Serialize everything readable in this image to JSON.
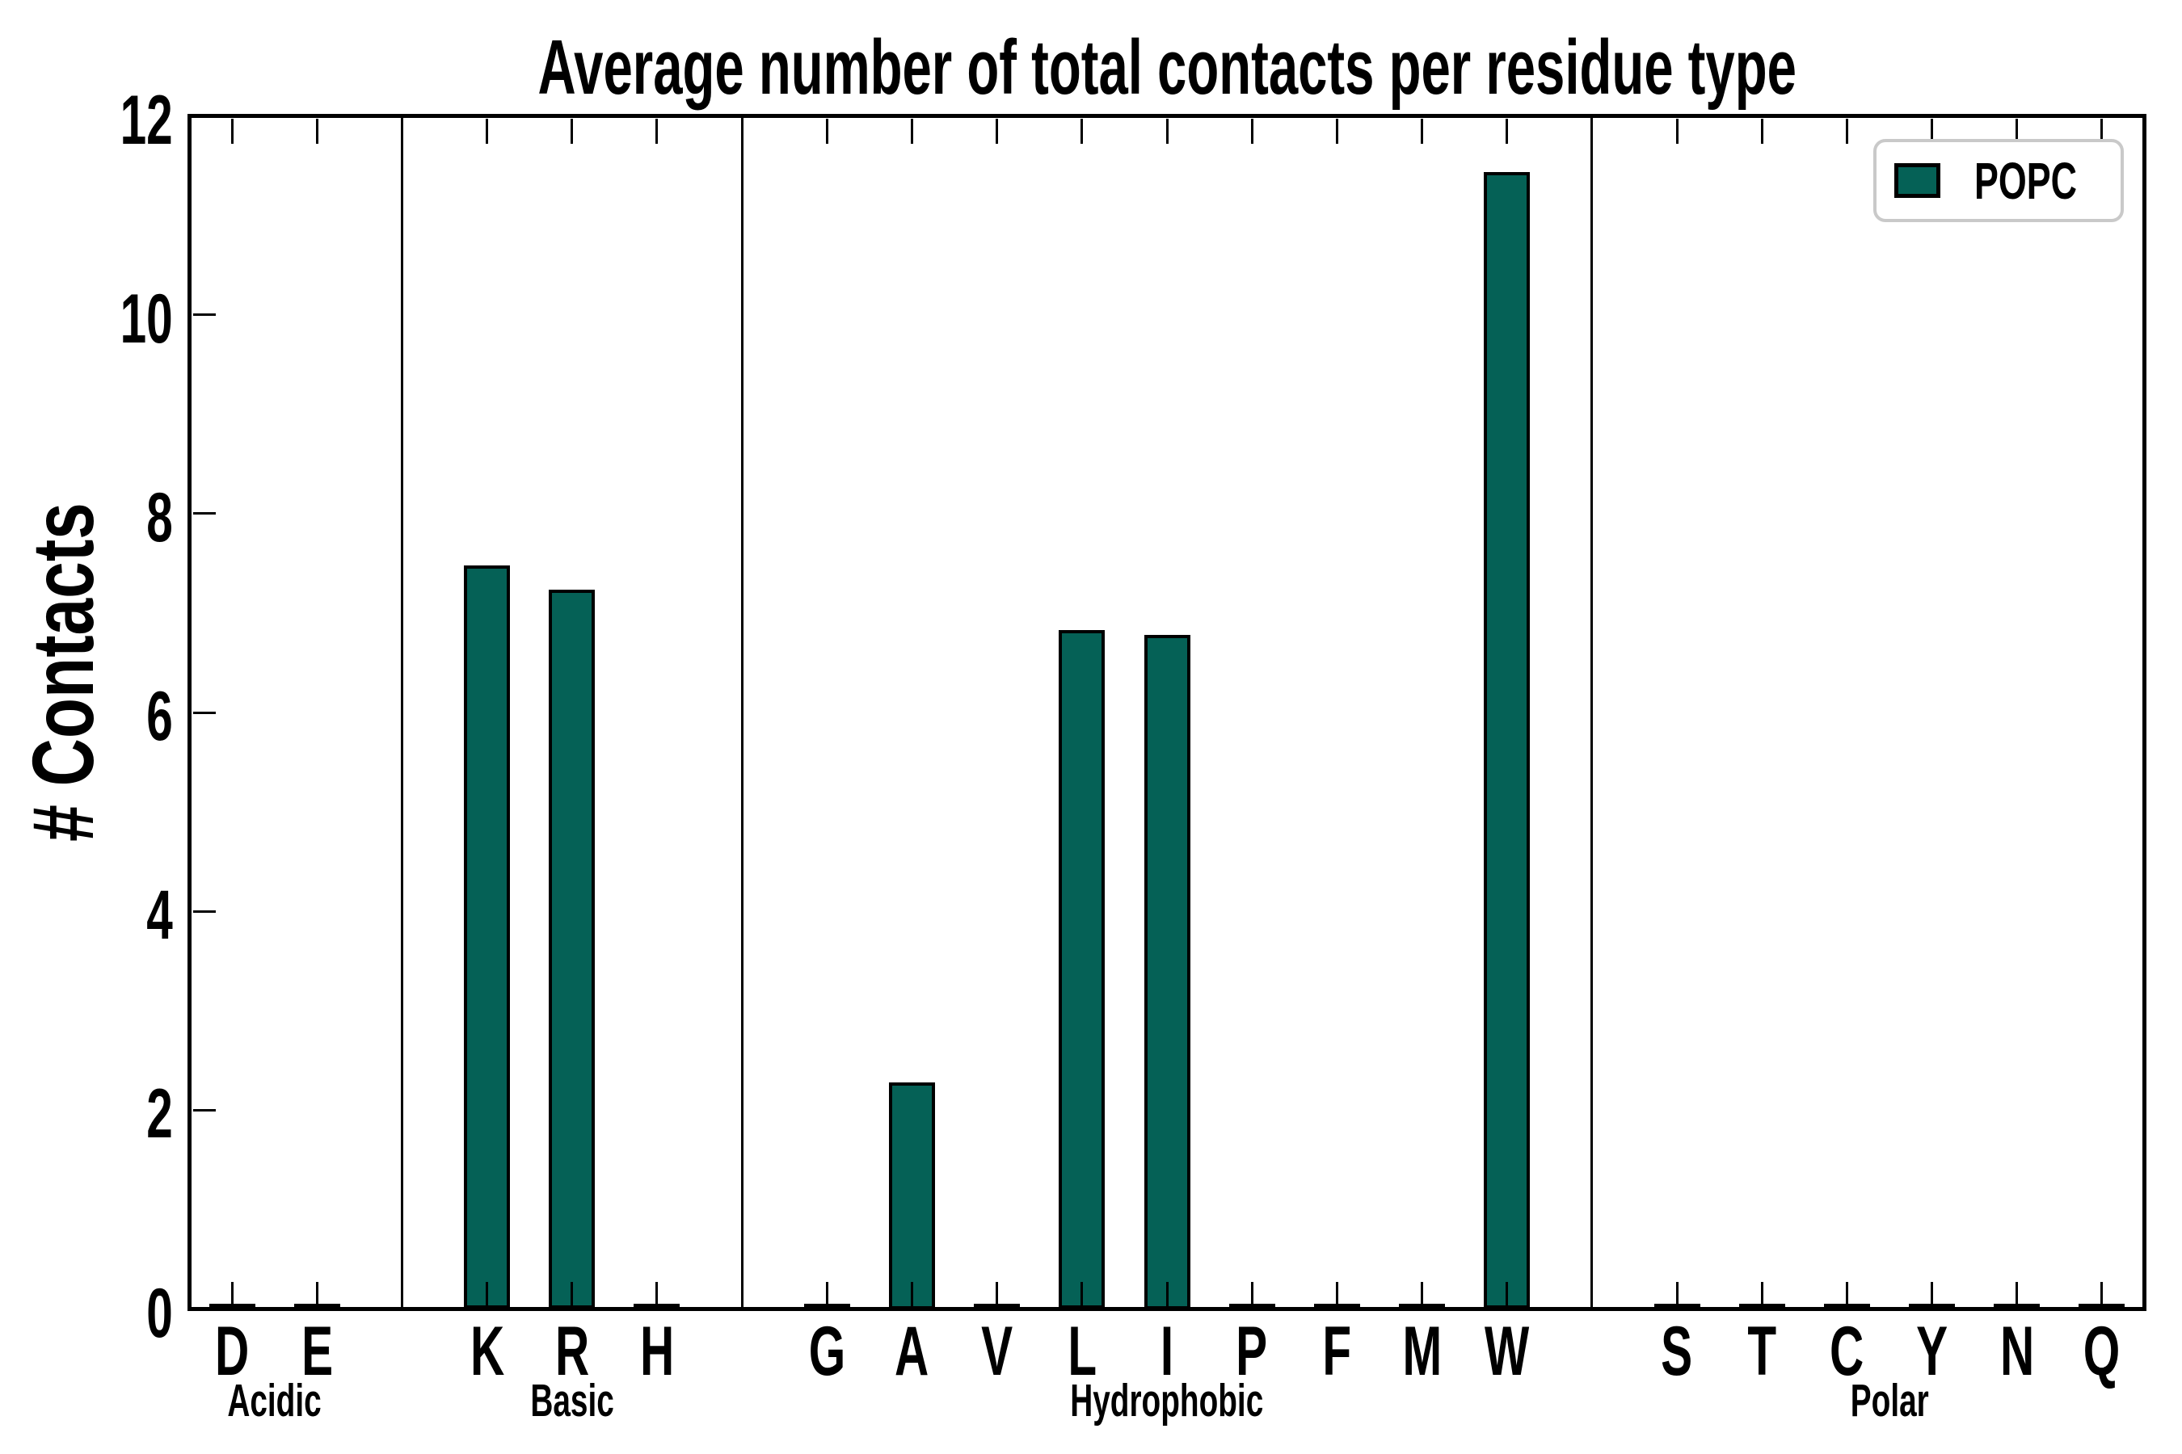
{
  "colors": {
    "bar_fill": "#056156",
    "bar_edge": "#000000",
    "axis": "#000000",
    "legend_border": "#c9c9c9",
    "background": "#ffffff"
  },
  "chart_data": {
    "type": "bar",
    "title": "Average number of total contacts per residue type",
    "ylabel": "# Contacts",
    "xlabel": "",
    "ylim": [
      0,
      12
    ],
    "yticks": [
      0,
      2,
      4,
      6,
      8,
      10,
      12
    ],
    "grid": false,
    "legend_label": "POPC",
    "legend_position": "upper right",
    "series_name": "POPC",
    "groups": [
      {
        "label": "Acidic",
        "residues": [
          {
            "letter": "D",
            "value": 0.02
          },
          {
            "letter": "E",
            "value": 0.02
          }
        ]
      },
      {
        "label": "Basic",
        "residues": [
          {
            "letter": "K",
            "value": 7.45
          },
          {
            "letter": "R",
            "value": 7.2
          },
          {
            "letter": "H",
            "value": 0.02
          }
        ]
      },
      {
        "label": "Hydrophobic",
        "residues": [
          {
            "letter": "G",
            "value": 0.02
          },
          {
            "letter": "A",
            "value": 2.25
          },
          {
            "letter": "V",
            "value": 0.02
          },
          {
            "letter": "L",
            "value": 6.8
          },
          {
            "letter": "I",
            "value": 6.75
          },
          {
            "letter": "P",
            "value": 0.02
          },
          {
            "letter": "F",
            "value": 0.02
          },
          {
            "letter": "M",
            "value": 0.02
          },
          {
            "letter": "W",
            "value": 11.4
          }
        ]
      },
      {
        "label": "Polar",
        "residues": [
          {
            "letter": "S",
            "value": 0.02
          },
          {
            "letter": "T",
            "value": 0.02
          },
          {
            "letter": "C",
            "value": 0.02
          },
          {
            "letter": "Y",
            "value": 0.02
          },
          {
            "letter": "N",
            "value": 0.02
          },
          {
            "letter": "Q",
            "value": 0.02
          }
        ]
      }
    ]
  }
}
